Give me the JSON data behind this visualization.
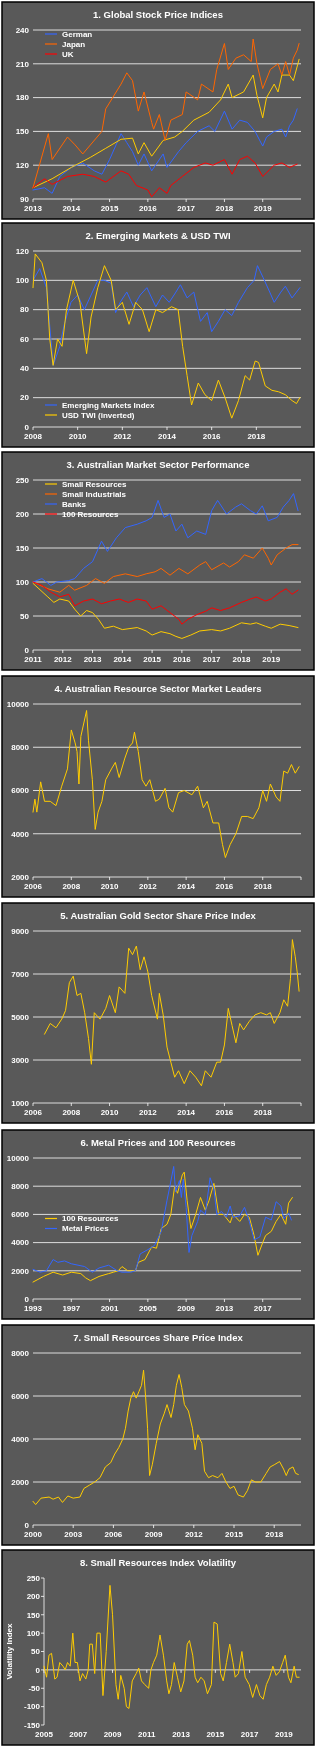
{
  "chart_data": [
    {
      "type": "line",
      "title": "1. Global Stock Price Indices",
      "xlim": [
        2013,
        2020
      ],
      "xticks": [
        2013,
        2014,
        2015,
        2016,
        2017,
        2018,
        2019
      ],
      "ylim": [
        90,
        240
      ],
      "yticks": [
        90,
        120,
        150,
        180,
        210,
        240
      ],
      "grid": "y",
      "legend": "top left",
      "series": [
        {
          "name": "German",
          "color": "#3366ff",
          "x": [
            2013.0,
            2013.3,
            2013.5,
            2013.7,
            2014.0,
            2014.3,
            2014.6,
            2014.8,
            2015.0,
            2015.3,
            2015.45,
            2015.6,
            2015.75,
            2015.9,
            2016.1,
            2016.2,
            2016.4,
            2016.5,
            2016.8,
            2017.0,
            2017.3,
            2017.6,
            2017.75,
            2018.0,
            2018.2,
            2018.4,
            2018.6,
            2018.8,
            2019.0,
            2019.1,
            2019.3,
            2019.5,
            2019.6,
            2019.7,
            2019.8,
            2019.9
          ],
          "values": [
            98,
            100,
            95,
            110,
            118,
            122,
            115,
            112,
            125,
            148,
            140,
            132,
            120,
            130,
            115,
            120,
            130,
            118,
            132,
            140,
            150,
            155,
            150,
            168,
            152,
            160,
            158,
            150,
            137,
            145,
            150,
            152,
            145,
            155,
            160,
            170
          ]
        },
        {
          "color": "#ffcc00",
          "x": [
            2013.0,
            2013.5,
            2014.0,
            2014.5,
            2014.9,
            2015.3,
            2015.6,
            2015.75,
            2015.9,
            2016.1,
            2016.4,
            2016.7,
            2016.9,
            2017.2,
            2017.6,
            2017.9,
            2018.1,
            2018.2,
            2018.5,
            2018.75,
            2018.85,
            2019.0,
            2019.1,
            2019.3,
            2019.4,
            2019.5,
            2019.7,
            2019.8,
            2019.95
          ],
          "values": [
            100,
            108,
            118,
            127,
            135,
            143,
            144,
            130,
            140,
            128,
            142,
            145,
            150,
            160,
            167,
            178,
            192,
            180,
            185,
            200,
            182,
            162,
            180,
            192,
            185,
            200,
            200,
            195,
            214
          ]
        },
        {
          "name": "Japan",
          "color": "#ff6600",
          "x": [
            2013.0,
            2013.4,
            2013.5,
            2013.9,
            2014.1,
            2014.3,
            2014.8,
            2014.9,
            2015.3,
            2015.45,
            2015.6,
            2015.75,
            2015.9,
            2016.1,
            2016.15,
            2016.3,
            2016.45,
            2016.6,
            2016.9,
            2017.0,
            2017.3,
            2017.4,
            2017.7,
            2017.8,
            2018.0,
            2018.1,
            2018.3,
            2018.5,
            2018.7,
            2018.75,
            2018.85,
            2019.0,
            2019.2,
            2019.4,
            2019.5,
            2019.6,
            2019.7,
            2019.8,
            2019.9,
            2019.95
          ],
          "values": [
            100,
            148,
            125,
            145,
            138,
            130,
            150,
            170,
            192,
            202,
            195,
            168,
            185,
            158,
            152,
            165,
            142,
            160,
            165,
            185,
            178,
            192,
            185,
            205,
            228,
            205,
            215,
            218,
            212,
            232,
            210,
            188,
            205,
            210,
            200,
            212,
            200,
            215,
            222,
            228
          ]
        },
        {
          "name": "UK",
          "color": "#ff0000",
          "x": [
            2013.0,
            2013.3,
            2013.5,
            2013.9,
            2014.3,
            2014.6,
            2014.9,
            2015.3,
            2015.5,
            2015.7,
            2016.0,
            2016.1,
            2016.3,
            2016.5,
            2016.6,
            2016.9,
            2017.2,
            2017.5,
            2017.7,
            2018.0,
            2018.2,
            2018.4,
            2018.6,
            2018.8,
            2019.0,
            2019.3,
            2019.5,
            2019.7,
            2019.9
          ],
          "values": [
            100,
            108,
            103,
            110,
            112,
            110,
            105,
            115,
            112,
            102,
            98,
            92,
            100,
            95,
            102,
            110,
            118,
            122,
            120,
            125,
            112,
            125,
            128,
            122,
            110,
            120,
            122,
            118,
            121
          ]
        }
      ]
    },
    {
      "type": "line",
      "title": "2. Emerging Markets & USD TWI",
      "xlim": [
        2008,
        2020
      ],
      "xticks": [
        2008,
        2010,
        2012,
        2014,
        2016,
        2018
      ],
      "ylim": [
        0,
        120
      ],
      "yticks": [
        0,
        20,
        40,
        60,
        80,
        100,
        120
      ],
      "grid": "y",
      "legend": "bottom left",
      "series": [
        {
          "name": "Emerging Markets Index",
          "color": "#3366ff",
          "x": [
            2008.0,
            2008.3,
            2008.6,
            2008.8,
            2008.9,
            2009.2,
            2009.4,
            2009.7,
            2010.0,
            2010.3,
            2010.6,
            2010.9,
            2011.2,
            2011.5,
            2011.7,
            2011.9,
            2012.2,
            2012.5,
            2012.8,
            2013.1,
            2013.5,
            2013.8,
            2014.1,
            2014.4,
            2014.6,
            2014.9,
            2015.2,
            2015.5,
            2015.8,
            2016.0,
            2016.3,
            2016.6,
            2016.9,
            2017.2,
            2017.6,
            2017.9,
            2018.05,
            2018.3,
            2018.6,
            2018.8,
            2019.1,
            2019.3,
            2019.6,
            2019.8,
            2019.95
          ],
          "values": [
            100,
            108,
            95,
            60,
            42,
            55,
            70,
            85,
            90,
            80,
            90,
            100,
            100,
            98,
            78,
            85,
            92,
            82,
            90,
            95,
            82,
            90,
            85,
            92,
            97,
            88,
            92,
            72,
            78,
            65,
            72,
            80,
            76,
            85,
            95,
            100,
            110,
            102,
            92,
            85,
            92,
            96,
            88,
            92,
            95
          ]
        },
        {
          "name": "USD TWI (inverted)",
          "color": "#ffcc00",
          "x": [
            2008.0,
            2008.1,
            2008.4,
            2008.6,
            2008.75,
            2008.9,
            2009.1,
            2009.3,
            2009.5,
            2009.8,
            2010.1,
            2010.4,
            2010.6,
            2010.9,
            2011.2,
            2011.5,
            2011.7,
            2012.0,
            2012.3,
            2012.6,
            2012.9,
            2013.2,
            2013.5,
            2013.8,
            2014.2,
            2014.5,
            2014.7,
            2014.9,
            2015.1,
            2015.4,
            2015.7,
            2016.0,
            2016.3,
            2016.6,
            2016.9,
            2017.2,
            2017.5,
            2017.7,
            2017.95,
            2018.1,
            2018.4,
            2018.7,
            2019.0,
            2019.3,
            2019.6,
            2019.8,
            2019.95
          ],
          "values": [
            95,
            118,
            112,
            100,
            60,
            42,
            60,
            55,
            80,
            100,
            85,
            50,
            75,
            95,
            110,
            100,
            80,
            85,
            70,
            85,
            80,
            65,
            80,
            78,
            82,
            80,
            55,
            35,
            15,
            30,
            22,
            18,
            32,
            20,
            6,
            18,
            35,
            32,
            45,
            44,
            28,
            25,
            24,
            22,
            18,
            16,
            20
          ]
        }
      ]
    },
    {
      "type": "line",
      "title": "3. Australian Market Sector Performance",
      "xlim": [
        2011,
        2020
      ],
      "xticks": [
        2011,
        2012,
        2013,
        2014,
        2015,
        2016,
        2017,
        2018,
        2019
      ],
      "ylim": [
        0,
        250
      ],
      "yticks": [
        0,
        50,
        100,
        150,
        200,
        250
      ],
      "grid": "y",
      "legend": "top left",
      "series": [
        {
          "name": "Small Resources",
          "color": "#ffcc00",
          "x": [
            2011.0,
            2011.2,
            2011.5,
            2011.7,
            2011.9,
            2012.2,
            2012.4,
            2012.6,
            2012.8,
            2013.0,
            2013.2,
            2013.4,
            2013.7,
            2014.0,
            2014.5,
            2014.8,
            2015.0,
            2015.3,
            2015.6,
            2015.8,
            2016.0,
            2016.3,
            2016.6,
            2017.0,
            2017.3,
            2017.6,
            2018.0,
            2018.3,
            2018.5,
            2018.8,
            2019.0,
            2019.3,
            2019.6,
            2019.9
          ],
          "values": [
            98,
            90,
            78,
            70,
            75,
            72,
            60,
            50,
            58,
            55,
            45,
            32,
            35,
            30,
            33,
            28,
            22,
            27,
            24,
            20,
            17,
            22,
            28,
            30,
            28,
            32,
            40,
            38,
            40,
            35,
            32,
            38,
            36,
            33
          ]
        },
        {
          "name": "Small Industrials",
          "color": "#ff6600",
          "x": [
            2011.0,
            2011.5,
            2011.9,
            2012.2,
            2012.4,
            2012.8,
            2013.1,
            2013.4,
            2013.7,
            2014.1,
            2014.5,
            2014.8,
            2015.1,
            2015.3,
            2015.6,
            2015.9,
            2016.2,
            2016.6,
            2016.8,
            2017.0,
            2017.4,
            2017.6,
            2017.9,
            2018.1,
            2018.4,
            2018.7,
            2018.9,
            2019.0,
            2019.2,
            2019.5,
            2019.7,
            2019.9
          ],
          "values": [
            100,
            90,
            85,
            95,
            88,
            95,
            105,
            98,
            108,
            112,
            108,
            112,
            115,
            120,
            110,
            120,
            112,
            125,
            130,
            118,
            128,
            122,
            130,
            140,
            135,
            150,
            135,
            125,
            140,
            150,
            155,
            155
          ]
        },
        {
          "name": "Banks",
          "color": "#3366ff",
          "x": [
            2011.0,
            2011.3,
            2011.6,
            2011.8,
            2012.2,
            2012.4,
            2012.7,
            2013.0,
            2013.3,
            2013.5,
            2013.8,
            2014.1,
            2014.5,
            2014.8,
            2015.0,
            2015.2,
            2015.4,
            2015.6,
            2015.8,
            2016.0,
            2016.2,
            2016.5,
            2016.8,
            2017.0,
            2017.2,
            2017.5,
            2017.8,
            2018.0,
            2018.3,
            2018.5,
            2018.7,
            2018.9,
            2019.2,
            2019.4,
            2019.6,
            2019.75,
            2019.9
          ],
          "values": [
            100,
            105,
            95,
            100,
            102,
            105,
            120,
            130,
            160,
            145,
            165,
            180,
            185,
            190,
            195,
            220,
            195,
            200,
            175,
            185,
            165,
            175,
            170,
            205,
            220,
            200,
            210,
            215,
            205,
            200,
            212,
            190,
            195,
            210,
            220,
            230,
            205
          ]
        },
        {
          "name": "100 Resources",
          "color": "#ff0000",
          "x": [
            2011.0,
            2011.3,
            2011.6,
            2011.9,
            2012.2,
            2012.4,
            2012.7,
            2013.0,
            2013.3,
            2013.6,
            2013.9,
            2014.2,
            2014.5,
            2014.8,
            2015.0,
            2015.3,
            2015.6,
            2015.9,
            2016.0,
            2016.2,
            2016.5,
            2016.8,
            2017.0,
            2017.3,
            2017.6,
            2018.0,
            2018.3,
            2018.5,
            2018.8,
            2019.0,
            2019.3,
            2019.5,
            2019.7,
            2019.9
          ],
          "values": [
            100,
            95,
            85,
            78,
            82,
            65,
            72,
            75,
            68,
            72,
            75,
            70,
            75,
            72,
            60,
            65,
            55,
            45,
            38,
            45,
            52,
            57,
            62,
            58,
            62,
            70,
            75,
            78,
            72,
            75,
            85,
            90,
            82,
            88
          ]
        }
      ]
    },
    {
      "type": "line",
      "title": "4. Australian Resource Sector Market Leaders",
      "xlim": [
        2006,
        2020
      ],
      "xticks": [
        2006,
        2008,
        2010,
        2012,
        2014,
        2016,
        2018,
        {
          "value": 2020,
          "label": null
        }
      ],
      "ylim": [
        2000,
        10000
      ],
      "yticks": [
        2000,
        4000,
        6000,
        8000,
        10000
      ],
      "grid": "y",
      "series": [
        {
          "color": "#ffcc00",
          "x": [
            2006.0,
            2006.1,
            2006.2,
            2006.4,
            2006.6,
            2006.9,
            2007.2,
            2007.5,
            2007.8,
            2008.0,
            2008.2,
            2008.3,
            2008.4,
            2008.5,
            2008.8,
            2008.9,
            2009.1,
            2009.25,
            2009.4,
            2009.6,
            2009.8,
            2010.1,
            2010.3,
            2010.5,
            2010.8,
            2011.0,
            2011.2,
            2011.3,
            2011.5,
            2011.7,
            2011.9,
            2012.1,
            2012.4,
            2012.6,
            2012.9,
            2013.1,
            2013.3,
            2013.6,
            2013.9,
            2014.3,
            2014.6,
            2014.9,
            2015.1,
            2015.4,
            2015.7,
            2015.9,
            2016.05,
            2016.3,
            2016.6,
            2016.9,
            2017.2,
            2017.5,
            2017.8,
            2018.0,
            2018.2,
            2018.4,
            2018.7,
            2018.9,
            2019.1,
            2019.3,
            2019.5,
            2019.7,
            2019.9
          ],
          "values": [
            5000,
            5600,
            5000,
            6400,
            5500,
            5500,
            5300,
            6200,
            7000,
            8800,
            8200,
            7800,
            6300,
            8500,
            9700,
            8300,
            6500,
            4200,
            5000,
            5500,
            6500,
            7000,
            7300,
            6600,
            7500,
            8000,
            8200,
            8700,
            7800,
            6500,
            6200,
            6500,
            5500,
            5600,
            6100,
            5200,
            5000,
            5900,
            6000,
            5800,
            6200,
            5200,
            5500,
            4500,
            4500,
            3500,
            2900,
            3500,
            4000,
            4800,
            4800,
            4700,
            5200,
            6000,
            5500,
            6300,
            5700,
            5500,
            6900,
            6800,
            7200,
            6800,
            7100
          ]
        }
      ]
    },
    {
      "type": "line",
      "title": "5. Australian Gold Sector Share Price Index",
      "xlim": [
        2006,
        2020
      ],
      "xticks": [
        2006,
        2008,
        2010,
        2012,
        2014,
        2016,
        2018,
        {
          "value": 2020,
          "label": null
        }
      ],
      "ylim": [
        1000,
        9000
      ],
      "yticks": [
        1000,
        3000,
        5000,
        7000,
        9000
      ],
      "grid": "y",
      "series": [
        {
          "color": "#ffcc00",
          "x": [
            2006.6,
            2006.9,
            2007.2,
            2007.5,
            2007.7,
            2007.9,
            2008.1,
            2008.3,
            2008.5,
            2008.7,
            2008.9,
            2009.05,
            2009.2,
            2009.5,
            2009.8,
            2010.0,
            2010.3,
            2010.5,
            2010.8,
            2011.0,
            2011.2,
            2011.4,
            2011.6,
            2011.8,
            2012.0,
            2012.2,
            2012.5,
            2012.6,
            2012.8,
            2013.0,
            2013.2,
            2013.4,
            2013.6,
            2013.9,
            2014.2,
            2014.5,
            2014.8,
            2015.0,
            2015.3,
            2015.6,
            2015.8,
            2016.0,
            2016.2,
            2016.4,
            2016.6,
            2016.8,
            2017.0,
            2017.3,
            2017.6,
            2017.9,
            2018.2,
            2018.4,
            2018.6,
            2018.9,
            2019.1,
            2019.3,
            2019.45,
            2019.55,
            2019.7,
            2019.8,
            2019.9
          ],
          "values": [
            4200,
            4700,
            4500,
            4900,
            5300,
            6600,
            6900,
            6000,
            6100,
            5200,
            4000,
            2800,
            5200,
            4900,
            5400,
            6000,
            5200,
            6400,
            6100,
            8200,
            7900,
            8300,
            7200,
            7800,
            7100,
            6000,
            4900,
            6100,
            5100,
            3600,
            2900,
            2200,
            2500,
            1900,
            2500,
            2200,
            1800,
            2500,
            2200,
            2900,
            2900,
            3700,
            5400,
            4600,
            3800,
            4700,
            4400,
            4800,
            5100,
            5200,
            5100,
            5200,
            4700,
            5200,
            5800,
            5500,
            6800,
            8600,
            7800,
            7100,
            6200
          ]
        }
      ]
    },
    {
      "type": "line",
      "title": "6. Metal Prices and 100 Resources",
      "xlim": [
        1993,
        2021
      ],
      "xticks": [
        1993,
        1997,
        2001,
        2005,
        2009,
        2013,
        2017
      ],
      "ylim": [
        0,
        10000
      ],
      "yticks": [
        0,
        2000,
        4000,
        6000,
        8000,
        10000
      ],
      "grid": "y",
      "legend": "left",
      "series": [
        {
          "name": "100 Resources",
          "color": "#ffcc00",
          "x": [
            1993.0,
            1994.1,
            1995.1,
            1996.1,
            1997.0,
            1998.0,
            1998.5,
            1999.0,
            1999.9,
            2000.9,
            2001.4,
            2001.9,
            2002.3,
            2002.9,
            2003.7,
            2004.0,
            2004.7,
            2005.4,
            2005.9,
            2006.4,
            2007.0,
            2007.4,
            2007.8,
            2008.1,
            2008.6,
            2008.8,
            2009.1,
            2009.5,
            2010.0,
            2010.5,
            2011.0,
            2011.4,
            2011.9,
            2012.4,
            2012.9,
            2013.6,
            2013.9,
            2014.6,
            2015.1,
            2015.6,
            2016.1,
            2016.5,
            2017.0,
            2017.3,
            2017.9,
            2018.4,
            2018.9,
            2019.4,
            2019.7,
            2020.1
          ],
          "values": [
            1200,
            1600,
            1900,
            1700,
            1900,
            1800,
            1500,
            1300,
            1600,
            1800,
            1900,
            2000,
            2300,
            2000,
            2000,
            2600,
            2800,
            3700,
            3600,
            5000,
            5300,
            6000,
            8000,
            7500,
            8800,
            9000,
            7000,
            5000,
            6000,
            7200,
            6300,
            7000,
            8200,
            6000,
            6000,
            5400,
            6000,
            5500,
            6000,
            5800,
            4500,
            3100,
            4000,
            4500,
            4800,
            5500,
            6000,
            5300,
            6800,
            7200
          ]
        },
        {
          "name": "Metal Prices",
          "color": "#3366ff",
          "x": [
            1993.0,
            1993.75,
            1994.4,
            1995.1,
            1995.6,
            1996.3,
            1997.0,
            1997.7,
            1998.4,
            1999.2,
            1999.9,
            2000.9,
            2001.8,
            2002.3,
            2003.2,
            2003.7,
            2004.2,
            2005.0,
            2005.7,
            2006.4,
            2007.0,
            2007.3,
            2007.7,
            2007.9,
            2008.3,
            2008.5,
            2008.7,
            2009.0,
            2009.3,
            2009.6,
            2010.2,
            2010.5,
            2011.0,
            2011.5,
            2011.9,
            2012.2,
            2012.7,
            2013.2,
            2013.6,
            2013.9,
            2014.6,
            2015.1,
            2015.6,
            2016.1,
            2016.7,
            2017.3,
            2017.9,
            2018.4,
            2018.9,
            2019.2,
            2019.7,
            2020.0
          ],
          "values": [
            2100,
            1900,
            2000,
            2800,
            2600,
            2700,
            2500,
            2400,
            2300,
            1900,
            2200,
            2400,
            2000,
            1900,
            1900,
            2000,
            3200,
            3500,
            3800,
            4800,
            7000,
            8000,
            9400,
            7600,
            8400,
            7200,
            8500,
            6500,
            3300,
            4500,
            5500,
            6300,
            6000,
            8600,
            7800,
            6000,
            6200,
            5800,
            6600,
            5800,
            5900,
            6500,
            5500,
            4200,
            4400,
            5800,
            5600,
            6900,
            6600,
            5700,
            6100,
            5600
          ]
        }
      ]
    },
    {
      "type": "line",
      "title": "7. Small Resources Share Price Index",
      "xlim": [
        2000,
        2020
      ],
      "xticks": [
        2000,
        2003,
        2006,
        2009,
        2012,
        2015,
        2018
      ],
      "ylim": [
        0,
        8000
      ],
      "yticks": [
        0,
        2000,
        4000,
        6000,
        8000
      ],
      "grid": "y",
      "series": [
        {
          "color": "#ffcc00",
          "x": [
            2000.0,
            2000.2,
            2000.6,
            2001.2,
            2001.5,
            2001.9,
            2002.2,
            2002.6,
            2003.0,
            2003.5,
            2003.8,
            2004.2,
            2004.6,
            2005.0,
            2005.4,
            2005.8,
            2006.1,
            2006.4,
            2006.7,
            2006.9,
            2007.1,
            2007.3,
            2007.5,
            2007.7,
            2007.9,
            2008.1,
            2008.25,
            2008.4,
            2008.55,
            2008.7,
            2008.9,
            2009.2,
            2009.5,
            2009.8,
            2010.0,
            2010.3,
            2010.5,
            2010.7,
            2010.9,
            2011.1,
            2011.3,
            2011.6,
            2011.9,
            2012.1,
            2012.3,
            2012.6,
            2012.8,
            2013.1,
            2013.4,
            2013.8,
            2014.1,
            2014.4,
            2014.7,
            2015.0,
            2015.3,
            2015.7,
            2016.0,
            2016.3,
            2016.6,
            2017.0,
            2017.4,
            2017.7,
            2018.0,
            2018.4,
            2018.7,
            2018.9,
            2019.1,
            2019.4,
            2019.6,
            2019.8
          ],
          "values": [
            1100,
            950,
            1250,
            1300,
            1200,
            1300,
            1050,
            1350,
            1250,
            1300,
            1700,
            1850,
            2000,
            2200,
            2700,
            2900,
            3300,
            3600,
            4000,
            4500,
            5300,
            5900,
            6200,
            5900,
            6200,
            6500,
            7200,
            6000,
            4500,
            2300,
            2800,
            3800,
            4700,
            5200,
            5600,
            5000,
            5600,
            6500,
            7000,
            6400,
            5600,
            5300,
            4500,
            3500,
            4200,
            3800,
            2500,
            2200,
            2300,
            2200,
            2400,
            2000,
            1700,
            1800,
            1400,
            1300,
            1600,
            2100,
            2000,
            2000,
            2400,
            2700,
            2800,
            2950,
            2600,
            2300,
            2600,
            2700,
            2400,
            2350
          ]
        }
      ]
    },
    {
      "type": "line",
      "title": "8. Small Resources Index Volatility",
      "ylabel": "Volatility Index",
      "xlim": [
        2005,
        2020
      ],
      "xticks": [
        2005,
        2007,
        2009,
        2011,
        2013,
        2015,
        2017,
        2019
      ],
      "ylim": [
        -150,
        250
      ],
      "yticks": [
        -150,
        -100,
        -50,
        0,
        50,
        100,
        150,
        200,
        250
      ],
      "grid": false,
      "ref_lines": [
        {
          "axis": "y",
          "value": 0
        }
      ],
      "series": [
        {
          "color": "#ffcc00",
          "x": [
            2005.0,
            2005.15,
            2005.29,
            2005.44,
            2005.63,
            2005.76,
            2005.92,
            2006.11,
            2006.24,
            2006.37,
            2006.53,
            2006.68,
            2006.81,
            2006.95,
            2007.1,
            2007.25,
            2007.44,
            2007.58,
            2007.67,
            2007.82,
            2007.96,
            2008.09,
            2008.28,
            2008.44,
            2008.63,
            2008.85,
            2009.0,
            2009.2,
            2009.33,
            2009.48,
            2009.68,
            2009.81,
            2009.96,
            2010.15,
            2010.38,
            2010.53,
            2010.69,
            2010.88,
            2011.11,
            2011.24,
            2011.39,
            2011.58,
            2011.77,
            2011.97,
            2012.16,
            2012.29,
            2012.44,
            2012.6,
            2012.79,
            2012.98,
            2013.17,
            2013.36,
            2013.49,
            2013.68,
            2013.82,
            2013.97,
            2014.16,
            2014.35,
            2014.54,
            2014.77,
            2014.92,
            2015.11,
            2015.31,
            2015.46,
            2015.65,
            2015.84,
            2016.03,
            2016.16,
            2016.35,
            2016.55,
            2016.74,
            2016.98,
            2017.18,
            2017.4,
            2017.6,
            2017.79,
            2017.98,
            2018.17,
            2018.36,
            2018.55,
            2018.74,
            2018.93,
            2019.08,
            2019.27,
            2019.41,
            2019.6,
            2019.73,
            2019.89
          ],
          "values": [
            10,
            -20,
            40,
            45,
            -25,
            -20,
            20,
            10,
            0,
            20,
            10,
            100,
            20,
            20,
            -30,
            -10,
            -25,
            0,
            70,
            70,
            -10,
            100,
            100,
            -70,
            50,
            230,
            150,
            -40,
            -80,
            -15,
            -50,
            -100,
            -105,
            -30,
            -10,
            5,
            -30,
            -40,
            -50,
            0,
            20,
            40,
            95,
            40,
            -30,
            -65,
            -40,
            20,
            -20,
            -60,
            -30,
            70,
            80,
            40,
            -20,
            -35,
            -20,
            -30,
            -65,
            -40,
            130,
            125,
            -10,
            -30,
            20,
            70,
            20,
            -20,
            -10,
            50,
            -20,
            -40,
            -75,
            -40,
            -70,
            -80,
            -40,
            -20,
            10,
            -15,
            -5,
            20,
            40,
            -20,
            -35,
            10,
            -20,
            -20
          ]
        }
      ]
    }
  ]
}
